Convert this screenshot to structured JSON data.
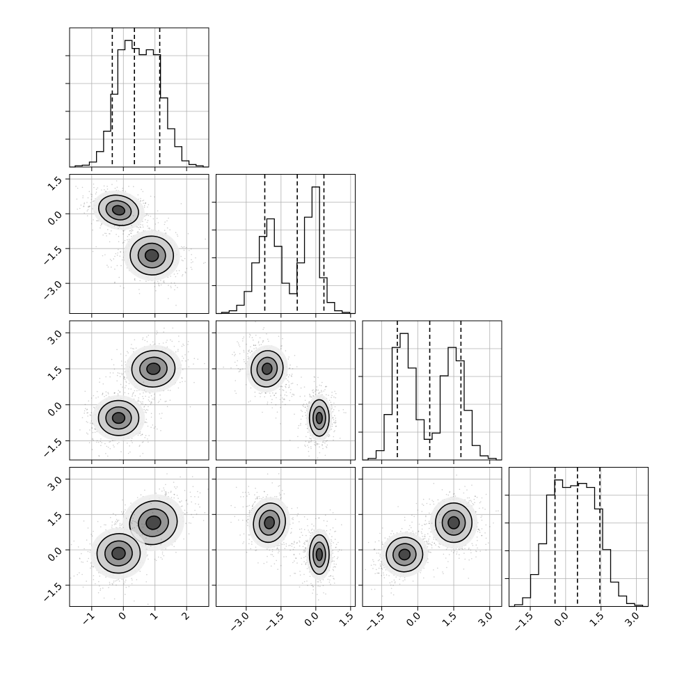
{
  "chart_data": {
    "type": "corner",
    "grid": true,
    "parameters": [
      {
        "index": 0,
        "range": [
          -1.7,
          2.7
        ],
        "ticks": [
          -1,
          0,
          1,
          2
        ],
        "tick_labels": [
          "−1",
          "0",
          "1",
          "2"
        ]
      },
      {
        "index": 1,
        "range": [
          -4.3,
          1.7
        ],
        "ticks": [
          -3.0,
          -1.5,
          0.0,
          1.5
        ],
        "tick_labels": [
          "−3.0",
          "−1.5",
          "0.0",
          "1.5"
        ]
      },
      {
        "index": 2,
        "range": [
          -2.3,
          3.5
        ],
        "ticks": [
          -1.5,
          0.0,
          1.5,
          3.0
        ],
        "tick_labels": [
          "−1.5",
          "0.0",
          "1.5",
          "3.0"
        ]
      },
      {
        "index": 3,
        "range": [
          -2.4,
          3.5
        ],
        "ticks": [
          -1.5,
          0.0,
          1.5,
          3.0
        ],
        "tick_labels": [
          "−1.5",
          "0.0",
          "1.5",
          "3.0"
        ]
      }
    ],
    "histograms": [
      {
        "param": 0,
        "counts": [
          2,
          3,
          8,
          25,
          58,
          118,
          190,
          205,
          192,
          182,
          190,
          182,
          112,
          62,
          33,
          10,
          4,
          2
        ],
        "quantiles": [
          -0.35,
          0.35,
          1.15
        ]
      },
      {
        "param": 1,
        "counts": [
          2,
          5,
          15,
          40,
          92,
          140,
          172,
          122,
          55,
          36,
          92,
          175,
          230,
          65,
          20,
          5,
          2
        ],
        "quantiles": [
          -2.2,
          -0.8,
          0.35
        ]
      },
      {
        "param": 2,
        "counts": [
          3,
          18,
          88,
          218,
          245,
          178,
          78,
          40,
          52,
          163,
          218,
          192,
          96,
          28,
          8,
          3
        ],
        "quantiles": [
          -0.85,
          0.5,
          1.8
        ]
      },
      {
        "param": 3,
        "counts": [
          3,
          15,
          55,
          108,
          192,
          218,
          205,
          208,
          212,
          205,
          168,
          98,
          42,
          18,
          5,
          2
        ],
        "quantiles": [
          -0.45,
          0.5,
          1.45
        ]
      }
    ],
    "scatter_panels": [
      {
        "x_param": 0,
        "y_param": 1,
        "clusters": [
          {
            "center": [
              -0.15,
              0.15
            ],
            "sx": 0.42,
            "sy": 0.42,
            "rho": -0.35,
            "weight": 0.5
          },
          {
            "center": [
              0.9,
              -1.8
            ],
            "sx": 0.45,
            "sy": 0.55,
            "rho": -0.1,
            "weight": 0.5
          }
        ]
      },
      {
        "x_param": 0,
        "y_param": 2,
        "clusters": [
          {
            "center": [
              0.95,
              1.5
            ],
            "sx": 0.45,
            "sy": 0.5,
            "rho": 0.15,
            "weight": 0.5
          },
          {
            "center": [
              -0.15,
              -0.55
            ],
            "sx": 0.42,
            "sy": 0.48,
            "rho": 0.0,
            "weight": 0.5
          }
        ]
      },
      {
        "x_param": 0,
        "y_param": 3,
        "clusters": [
          {
            "center": [
              0.95,
              1.15
            ],
            "sx": 0.5,
            "sy": 0.6,
            "rho": 0.5,
            "weight": 0.5
          },
          {
            "center": [
              -0.15,
              -0.15
            ],
            "sx": 0.45,
            "sy": 0.55,
            "rho": 0.15,
            "weight": 0.5
          }
        ]
      },
      {
        "x_param": 1,
        "y_param": 2,
        "clusters": [
          {
            "center": [
              -2.1,
              1.5
            ],
            "sx": 0.45,
            "sy": 0.5,
            "rho": -0.3,
            "weight": 0.5
          },
          {
            "center": [
              0.15,
              -0.55
            ],
            "sx": 0.28,
            "sy": 0.5,
            "rho": 0.0,
            "weight": 0.5
          }
        ]
      },
      {
        "x_param": 1,
        "y_param": 3,
        "clusters": [
          {
            "center": [
              -2.0,
              1.15
            ],
            "sx": 0.45,
            "sy": 0.55,
            "rho": -0.25,
            "weight": 0.5
          },
          {
            "center": [
              0.15,
              -0.2
            ],
            "sx": 0.28,
            "sy": 0.55,
            "rho": 0.0,
            "weight": 0.5
          }
        ]
      },
      {
        "x_param": 2,
        "y_param": 3,
        "clusters": [
          {
            "center": [
              1.5,
              1.15
            ],
            "sx": 0.5,
            "sy": 0.55,
            "rho": 0.0,
            "weight": 0.5
          },
          {
            "center": [
              -0.55,
              -0.2
            ],
            "sx": 0.5,
            "sy": 0.48,
            "rho": 0.35,
            "weight": 0.5
          }
        ]
      }
    ],
    "contour_levels": [
      0.39,
      0.86,
      0.99
    ],
    "colors": {
      "line": "#000000",
      "points": "#222222",
      "grid": "#b0b0b0"
    }
  }
}
